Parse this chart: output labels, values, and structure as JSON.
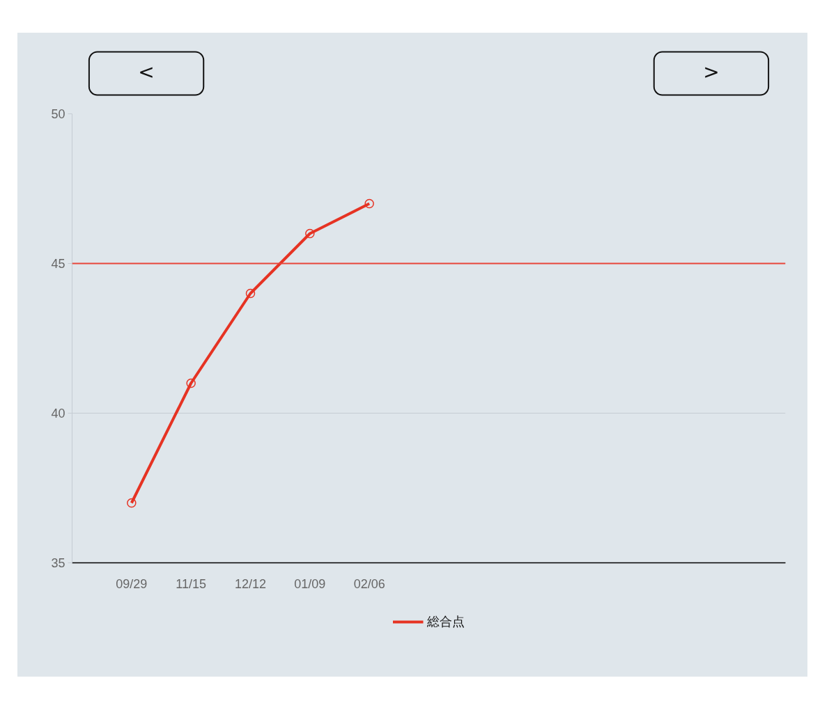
{
  "chart_data": {
    "type": "line",
    "categories": [
      null,
      "09/29",
      "11/15",
      "12/12",
      "01/09",
      "02/06",
      null,
      null,
      null,
      null,
      null,
      null,
      null
    ],
    "series": [
      {
        "name": "総合点",
        "color": "#e63323",
        "values": [
          null,
          37,
          41,
          44,
          46,
          47,
          null,
          null,
          null,
          null,
          null,
          null,
          null
        ]
      }
    ],
    "ylim": [
      35,
      50
    ],
    "yticks": [
      35,
      40,
      45,
      50
    ],
    "ref_lines": [
      {
        "axis": "y",
        "value": 45,
        "color": "#e8453a"
      }
    ],
    "annotations": [
      "<",
      ">"
    ],
    "grid": "y",
    "legend": "bottom",
    "marker": "circle",
    "line_style": "solid"
  }
}
